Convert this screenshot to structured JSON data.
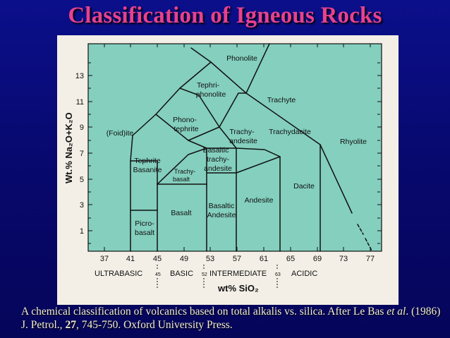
{
  "slide": {
    "title": "Classification of Igneous Rocks"
  },
  "diagram": {
    "y_axis_label": "Wt.% Na₂O+K₂O",
    "x_axis_label": "wt% SiO₂",
    "y_ticks": [
      "13",
      "11",
      "9",
      "7",
      "5",
      "3",
      "1"
    ],
    "x_ticks": [
      "37",
      "41",
      "45",
      "49",
      "53",
      "57",
      "61",
      "65",
      "69",
      "73",
      "77"
    ],
    "fields": {
      "phonolite": "Phonolite",
      "tephriphonolite_1": "Tephri-",
      "tephriphonolite_2": "phonolite",
      "trachyte": "Trachyte",
      "phonotephrite_1": "Phono-",
      "phonotephrite_2": "tephrite",
      "foidite": "(Foid)ite",
      "trachyandesite_1": "Trachy-",
      "trachyandesite_2": "andesite",
      "trachydacite": "Trachydacite",
      "rhyolite": "Rhyolite",
      "basaltic_trachyandesite_1": "Basaltic",
      "basaltic_trachyandesite_2": "trachy-",
      "basaltic_trachyandesite_3": "andesite",
      "tephrite_basanite_1": "Tephrite",
      "tephrite_basanite_2": "Basanite",
      "trachybasalt_1": "Trachy-",
      "trachybasalt_2": "basalt",
      "dacite": "Dacite",
      "andesite": "Andesite",
      "basaltic_andesite_1": "Basaltic",
      "basaltic_andesite_2": "Andesite",
      "basalt": "Basalt",
      "picrobasalt_1": "Picro-",
      "picrobasalt_2": "basalt"
    },
    "groups": {
      "ultrabasic": "ULTRABASIC",
      "basic": "BASIC",
      "intermediate": "INTERMEDIATE",
      "acidic": "ACIDIC",
      "boundary_45": "45",
      "boundary_52": "52",
      "boundary_63": "63"
    },
    "colors": {
      "field_fill": "#84cfbe",
      "background": "#f3efe6",
      "title": "#e8418f",
      "slide_bg": "#07086a"
    }
  },
  "caption": {
    "part1": "A chemical classification of volcanics based on total alkalis vs. silica. After Le Bas ",
    "et_al": "et al",
    "part2": ". (1986) J. Petrol., ",
    "volume": "27",
    "part3": ", 745-750. Oxford University Press."
  }
}
